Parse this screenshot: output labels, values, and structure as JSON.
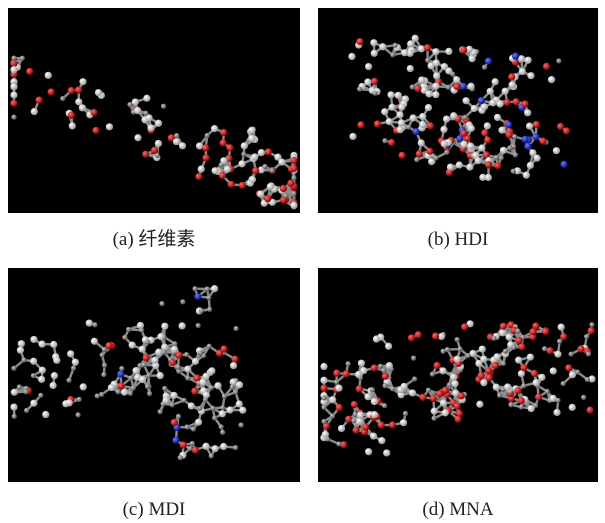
{
  "panels": [
    {
      "caption": "(a) 纤维素"
    },
    {
      "caption": "(b) HDI"
    },
    {
      "caption": "(c) MDI"
    },
    {
      "caption": "(d) MNA"
    }
  ]
}
